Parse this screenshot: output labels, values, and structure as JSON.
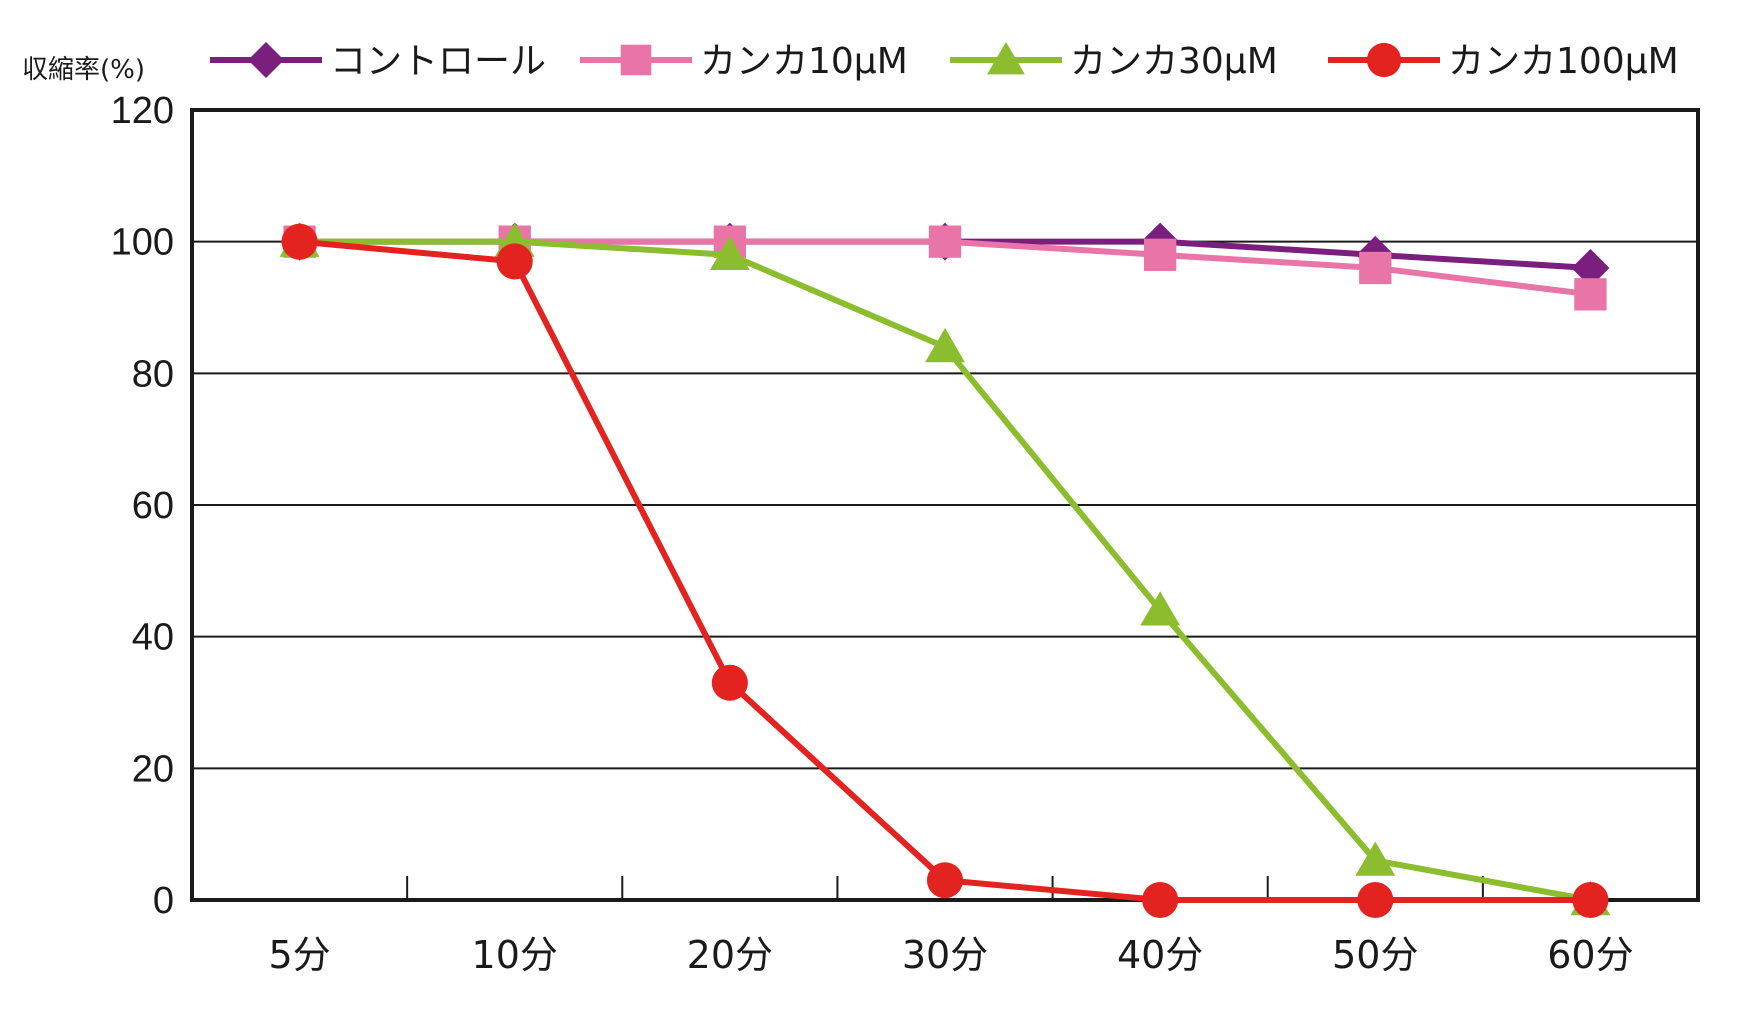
{
  "chart_data": {
    "type": "line",
    "ylabel": "収縮率(%)",
    "xlabel": "",
    "categories": [
      "5分",
      "10分",
      "20分",
      "30分",
      "40分",
      "50分",
      "60分"
    ],
    "ylim": [
      0,
      120
    ],
    "yticks": [
      0,
      20,
      40,
      60,
      80,
      100,
      120
    ],
    "grid": true,
    "legend_position": "top",
    "series": [
      {
        "name": "コントロール",
        "color": "#7b1f7f",
        "marker": "diamond",
        "values": [
          100,
          100,
          100,
          100,
          100,
          98,
          96
        ]
      },
      {
        "name": "カンカ10μM",
        "color": "#e874a8",
        "marker": "square",
        "values": [
          100,
          100,
          100,
          100,
          98,
          96,
          92
        ]
      },
      {
        "name": "カンカ30μM",
        "color": "#8cbd2e",
        "marker": "triangle",
        "values": [
          100,
          100,
          98,
          84,
          44,
          6,
          0
        ]
      },
      {
        "name": "カンカ100μM",
        "color": "#e3231f",
        "marker": "circle",
        "values": [
          100,
          97,
          33,
          3,
          0,
          0,
          0
        ]
      }
    ]
  }
}
